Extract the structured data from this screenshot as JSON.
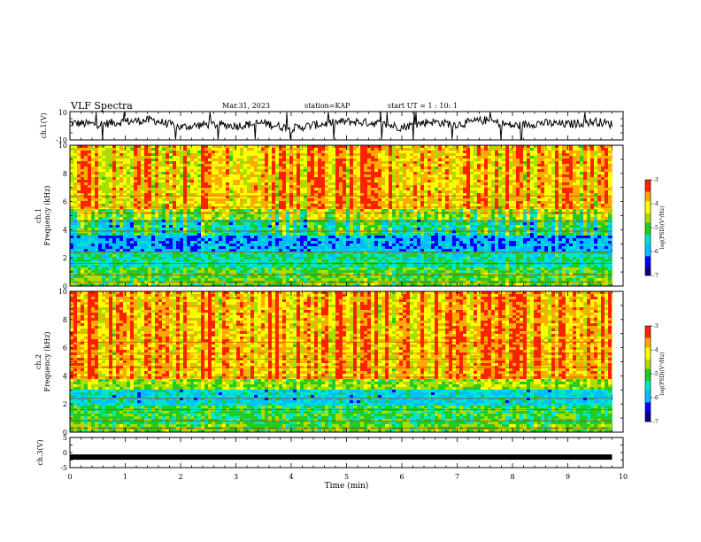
{
  "header": {
    "title": "VLF Spectra",
    "date": "Mar.31, 2023",
    "station": "station=KAP",
    "start": "start UT = 1 : 10: 1"
  },
  "colors": {
    "spectrum": [
      "#00008b",
      "#0000ff",
      "#00bfff",
      "#00e5c8",
      "#22cc22",
      "#aadd00",
      "#ffff00",
      "#ffaa00",
      "#ff2200",
      "#ffffff"
    ]
  },
  "chart_data": [
    {
      "type": "line",
      "panel": "ch1",
      "ylabel": "ch.1(V)",
      "ylim": [
        -10,
        10
      ],
      "yticks": [
        "10",
        "-10"
      ],
      "xlim": [
        0,
        10
      ],
      "x": [
        0,
        0.5,
        1,
        1.5,
        2,
        2.5,
        3,
        3.5,
        4,
        4.5,
        5,
        5.5,
        6,
        6.5,
        7,
        7.5,
        8,
        8.5,
        9,
        9.5,
        9.8
      ],
      "y": [
        2,
        1,
        3,
        4,
        -1,
        1,
        0,
        2,
        -2,
        1,
        3,
        2,
        -1,
        3,
        1,
        4,
        0,
        2,
        1,
        3,
        1
      ]
    },
    {
      "type": "heatmap",
      "panel": "ch1-spectrogram",
      "ylabel": "ch.1",
      "ylabel2": "Frequency (kHz)",
      "ylim": [
        0,
        10
      ],
      "yticks": [
        "0",
        "2",
        "4",
        "6",
        "8",
        "10"
      ],
      "xlim": [
        0,
        10
      ],
      "data_xmax": 9.8,
      "colorbar": {
        "label": "log(PSD)(V²/Hz)",
        "range": [
          -7,
          -3
        ],
        "ticks": [
          "-3",
          "-4",
          "-5",
          "-6",
          "-7"
        ]
      },
      "band_levels": [
        {
          "f": [
            0,
            0.6
          ],
          "level": 0.55
        },
        {
          "f": [
            0.6,
            1.4
          ],
          "level": 0.52
        },
        {
          "f": [
            1.4,
            2.4
          ],
          "level": 0.42
        },
        {
          "f": [
            2.4,
            3.6
          ],
          "level": 0.27
        },
        {
          "f": [
            3.6,
            4.8
          ],
          "level": 0.45
        },
        {
          "f": [
            4.8,
            5.5
          ],
          "level": 0.62
        },
        {
          "f": [
            5.5,
            10
          ],
          "level": 0.8
        }
      ]
    },
    {
      "type": "heatmap",
      "panel": "ch2-spectrogram",
      "ylabel": "ch.2",
      "ylabel2": "Frequency (kHz)",
      "ylim": [
        0,
        10
      ],
      "yticks": [
        "0",
        "2",
        "4",
        "6",
        "8",
        "10"
      ],
      "xlim": [
        0,
        10
      ],
      "data_xmax": 9.8,
      "colorbar": {
        "label": "log(PSD)(V²/Hz)",
        "range": [
          -7,
          -3
        ],
        "ticks": [
          "-3",
          "-4",
          "-5",
          "-6",
          "-7"
        ]
      },
      "band_levels": [
        {
          "f": [
            0,
            0.5
          ],
          "level": 0.55
        },
        {
          "f": [
            0.5,
            1.8
          ],
          "level": 0.5
        },
        {
          "f": [
            1.8,
            3.0
          ],
          "level": 0.35
        },
        {
          "f": [
            3.0,
            3.8
          ],
          "level": 0.6
        },
        {
          "f": [
            3.8,
            10
          ],
          "level": 0.82
        }
      ]
    },
    {
      "type": "line",
      "panel": "ch3",
      "ylabel": "ch.3(V)",
      "ylim": [
        -5,
        5
      ],
      "yticks": [
        "5",
        "0",
        "-5"
      ],
      "xlim": [
        0,
        10
      ],
      "x": [
        0,
        9.8
      ],
      "y": [
        -1.5,
        -1.5
      ],
      "xlabel": "Time (min)",
      "xticks": [
        "0",
        "1",
        "2",
        "3",
        "4",
        "5",
        "6",
        "7",
        "8",
        "9",
        "10"
      ]
    }
  ]
}
